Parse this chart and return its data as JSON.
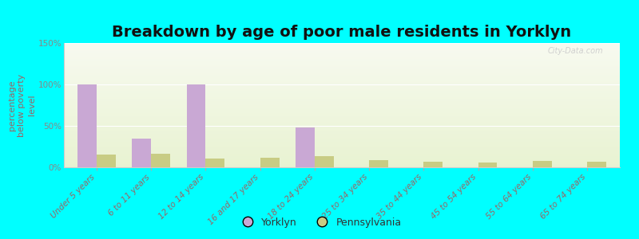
{
  "title": "Breakdown by age of poor male residents in Yorklyn",
  "ylabel": "percentage\nbelow poverty\nlevel",
  "categories": [
    "Under 5 years",
    "6 to 11 years",
    "12 to 14 years",
    "16 and 17 years",
    "18 to 24 years",
    "25 to 34 years",
    "35 to 44 years",
    "45 to 54 years",
    "55 to 64 years",
    "65 to 74 years"
  ],
  "yorklyn_values": [
    100,
    35,
    100,
    0,
    48,
    0,
    0,
    0,
    0,
    0
  ],
  "pennsylvania_values": [
    15,
    16,
    11,
    12,
    13,
    9,
    7,
    6,
    8,
    7
  ],
  "yorklyn_color": "#c9a8d4",
  "pennsylvania_color": "#c8cc84",
  "outer_bg": "#00ffff",
  "plot_bg_top": "#f0f7e0",
  "plot_bg_bottom": "#e8f5d8",
  "ylim": [
    0,
    150
  ],
  "yticks": [
    0,
    50,
    100,
    150
  ],
  "ytick_labels": [
    "0%",
    "50%",
    "100%",
    "150%"
  ],
  "bar_width": 0.35,
  "title_fontsize": 14,
  "ylabel_fontsize": 8,
  "tick_fontsize": 7.5,
  "legend_fontsize": 9,
  "watermark_text": "City-Data.com",
  "ylabel_color": "#996666",
  "xtick_color": "#996666",
  "ytick_color": "#888888",
  "title_color": "#111111"
}
